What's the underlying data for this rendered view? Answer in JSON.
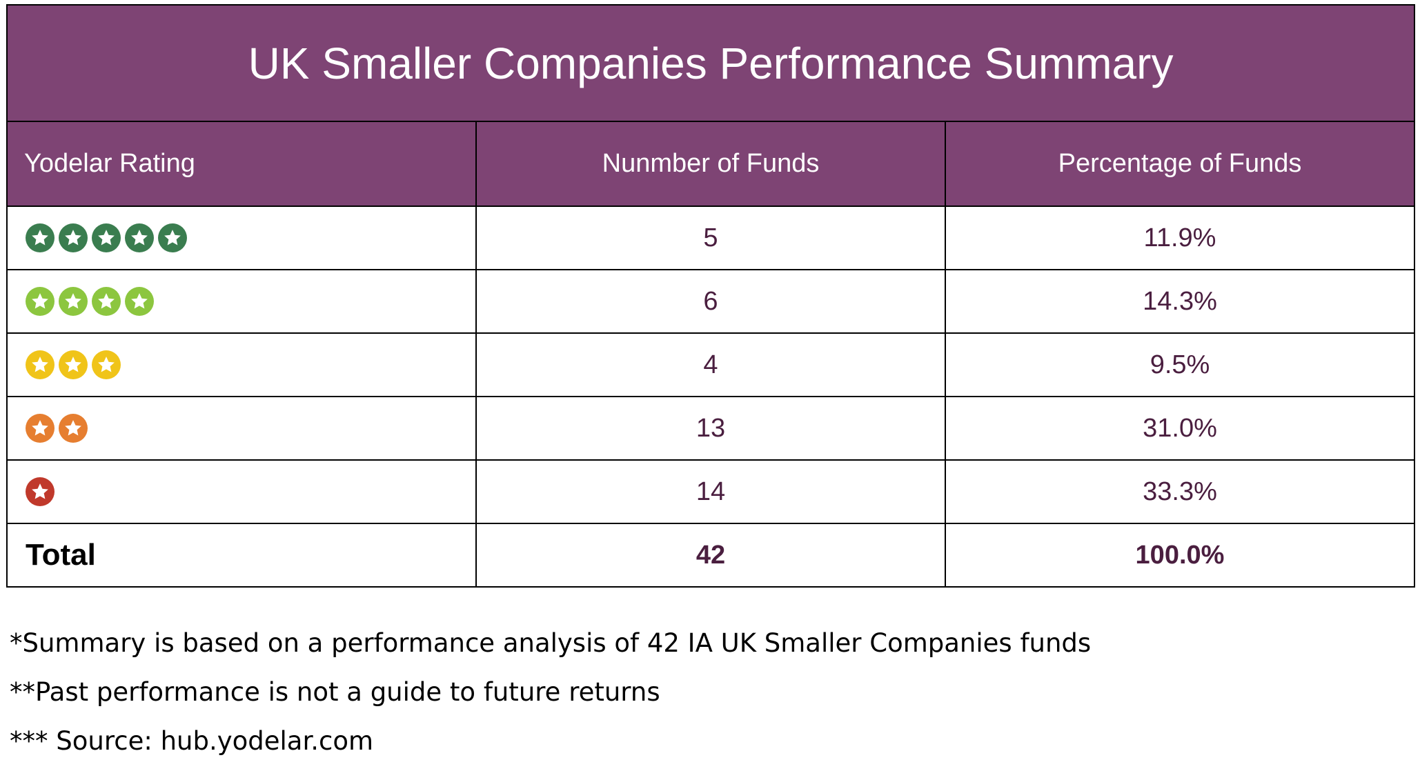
{
  "table": {
    "title": "UK Smaller Companies Performance Summary",
    "headers": [
      "Yodelar Rating",
      "Nunmber of Funds",
      "Percentage of Funds"
    ],
    "rows": [
      {
        "stars": 5,
        "star_color": "#3a7d4f",
        "count": "5",
        "percentage": "11.9%"
      },
      {
        "stars": 4,
        "star_color": "#8cc63f",
        "count": "6",
        "percentage": "14.3%"
      },
      {
        "stars": 3,
        "star_color": "#f0c419",
        "count": "4",
        "percentage": "9.5%"
      },
      {
        "stars": 2,
        "star_color": "#e67e30",
        "count": "13",
        "percentage": "31.0%"
      },
      {
        "stars": 1,
        "star_color": "#c0392b",
        "count": "14",
        "percentage": "33.3%"
      }
    ],
    "total": {
      "label": "Total",
      "count": "42",
      "percentage": "100.0%"
    }
  },
  "footnotes": [
    "*Summary is based on a performance analysis of 42 IA UK Smaller Companies funds",
    "**Past performance is not a guide to future returns",
    "*** Source: hub.yodelar.com"
  ],
  "colors": {
    "header_bg": "#7e4474",
    "header_text": "#ffffff",
    "value_text": "#4a1e3f"
  },
  "icons": {
    "rating_star": "star-icon"
  }
}
